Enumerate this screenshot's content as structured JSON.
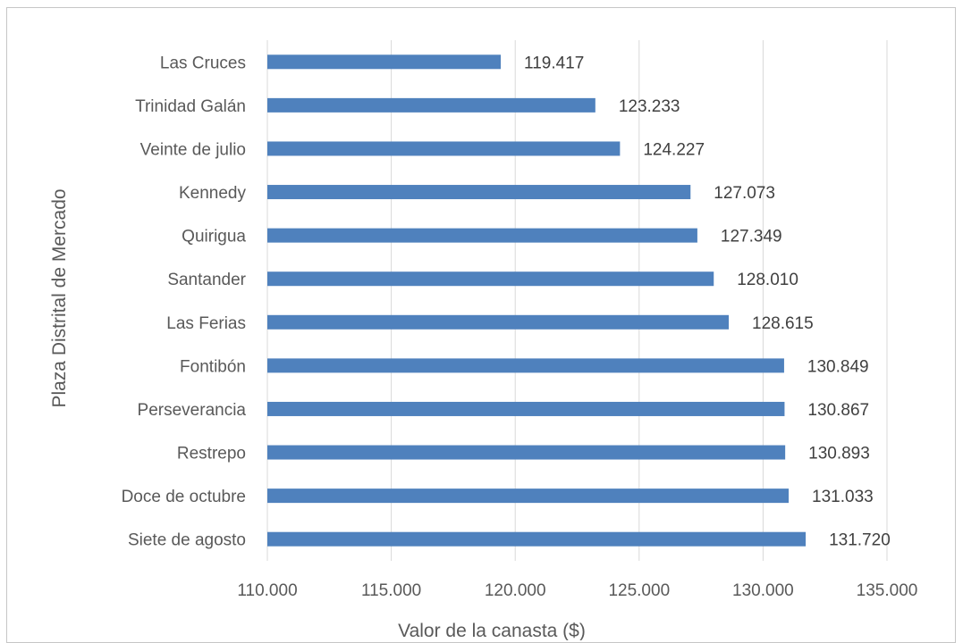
{
  "chart_data": {
    "type": "bar",
    "orientation": "horizontal",
    "categories": [
      "Las Cruces",
      "Trinidad Galán",
      "Veinte de julio",
      "Kennedy",
      "Quirigua",
      "Santander",
      "Las Ferias",
      "Fontibón",
      "Perseverancia",
      "Restrepo",
      "Doce de octubre",
      "Siete de agosto"
    ],
    "values": [
      119417,
      123233,
      124227,
      127073,
      127349,
      128010,
      128615,
      130849,
      130867,
      130893,
      131033,
      131720
    ],
    "value_labels": [
      "119.417",
      "123.233",
      "124.227",
      "127.073",
      "127.349",
      "128.010",
      "128.615",
      "130.849",
      "130.867",
      "130.893",
      "131.033",
      "131.720"
    ],
    "xlim": [
      110000,
      135000
    ],
    "xticks": [
      110000,
      115000,
      120000,
      125000,
      130000,
      135000
    ],
    "xtick_labels": [
      "110.000",
      "115.000",
      "120.000",
      "125.000",
      "130.000",
      "135.000"
    ],
    "xlabel": "Valor de la canasta ($)",
    "ylabel": "Plaza Distrital de Mercado",
    "title": "",
    "grid": "vertical",
    "bar_color": "#4f81bd"
  }
}
